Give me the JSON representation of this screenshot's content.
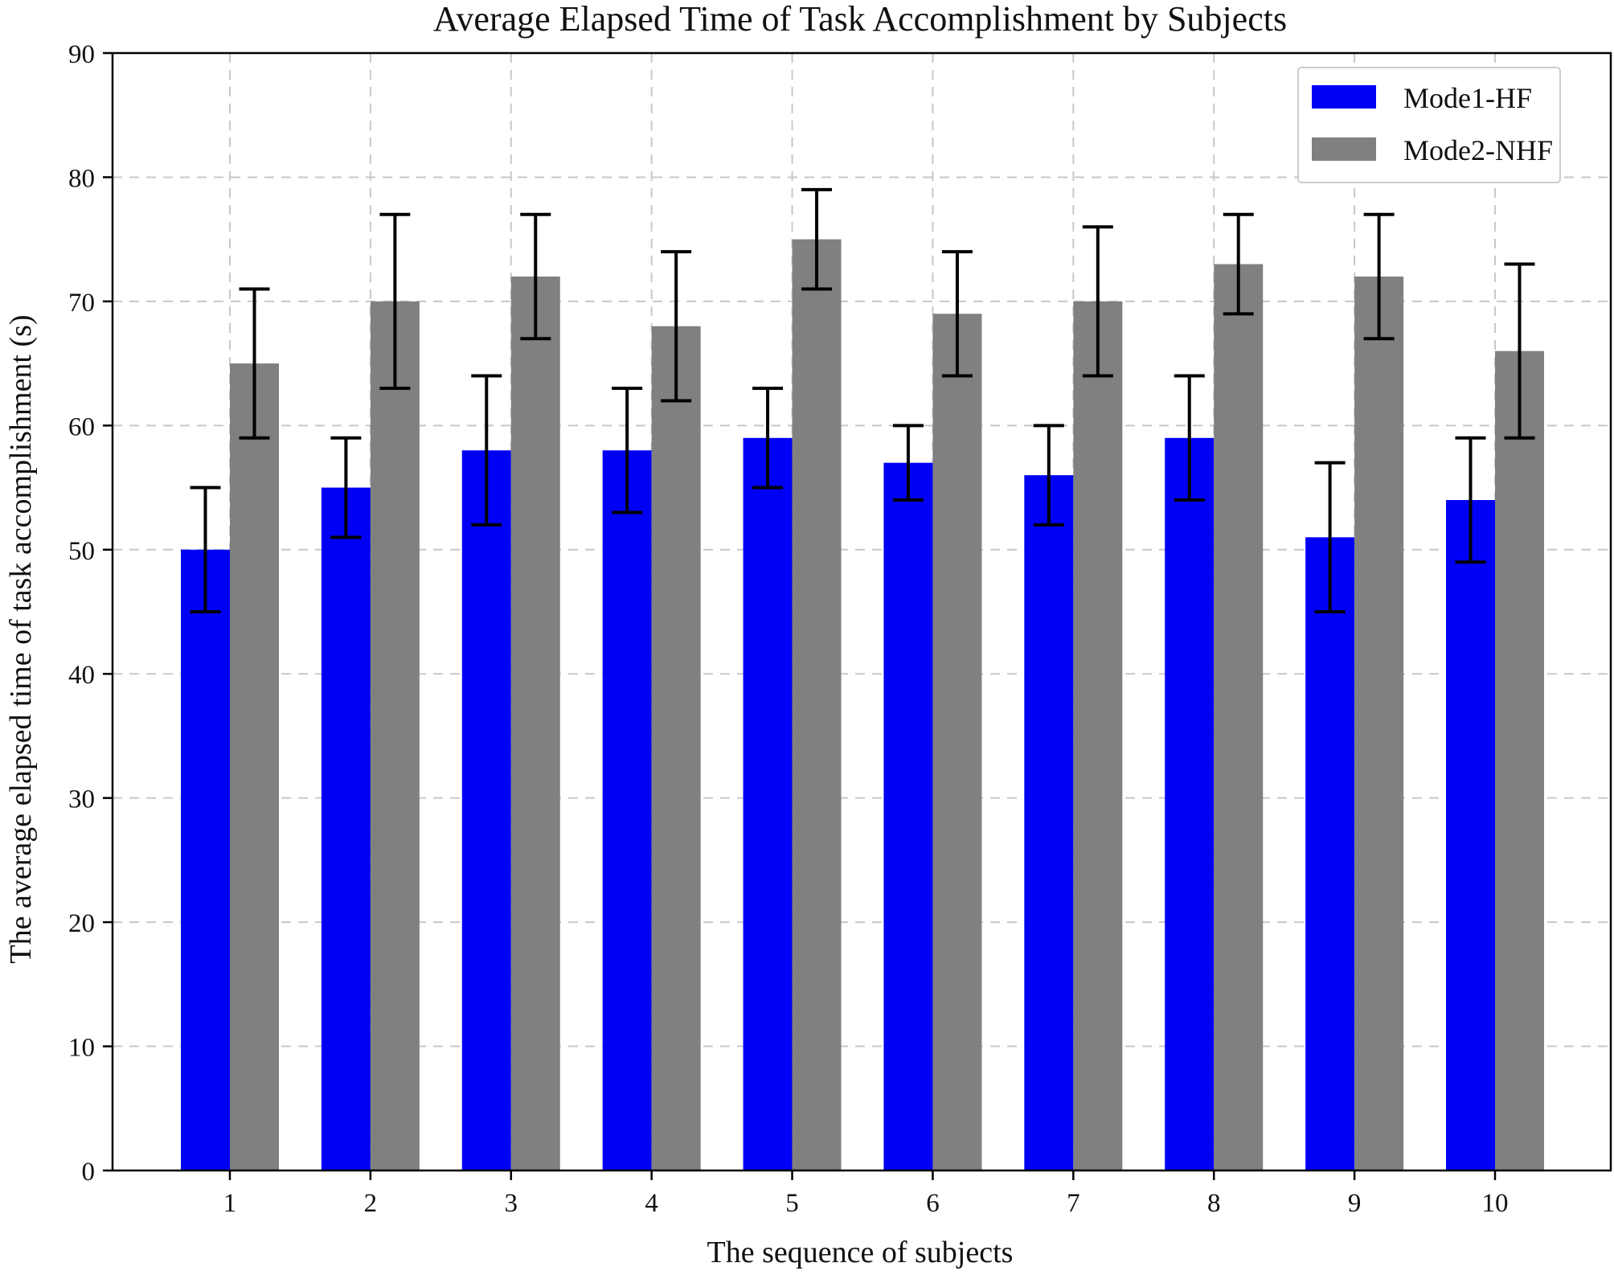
{
  "chart_data": {
    "type": "bar",
    "title": "Average Elapsed Time of Task Accomplishment by Subjects",
    "xlabel": "The sequence of subjects",
    "ylabel": "The average elapsed time of task accomplishment (s)",
    "categories": [
      "1",
      "2",
      "3",
      "4",
      "5",
      "6",
      "7",
      "8",
      "9",
      "10"
    ],
    "ylim": [
      0,
      90
    ],
    "yticks": [
      0,
      10,
      20,
      30,
      40,
      50,
      60,
      70,
      80,
      90
    ],
    "grid": true,
    "legend_position": "top-right",
    "series": [
      {
        "name": "Mode1-HF",
        "color": "#0000f5",
        "values": [
          50,
          55,
          58,
          58,
          59,
          57,
          56,
          59,
          51,
          54
        ],
        "errors": [
          5,
          4,
          6,
          5,
          4,
          3,
          4,
          5,
          6,
          5
        ]
      },
      {
        "name": "Mode2-NHF",
        "color": "#808080",
        "values": [
          65,
          70,
          72,
          68,
          75,
          69,
          70,
          73,
          72,
          66
        ],
        "errors": [
          6,
          7,
          5,
          6,
          4,
          5,
          6,
          4,
          5,
          7
        ]
      }
    ]
  }
}
